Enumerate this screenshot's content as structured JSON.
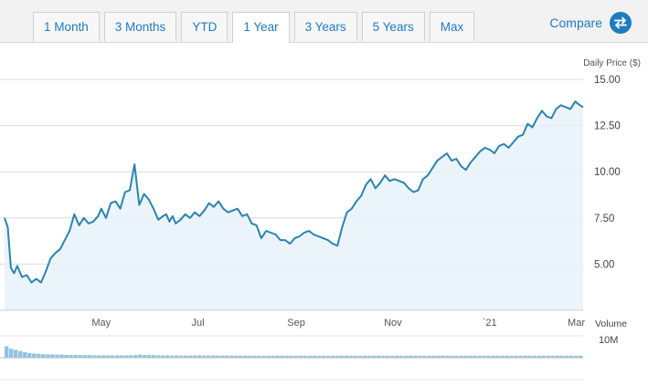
{
  "tabs": [
    {
      "label": "1 Month",
      "active": false
    },
    {
      "label": "3 Months",
      "active": false
    },
    {
      "label": "YTD",
      "active": false
    },
    {
      "label": "1 Year",
      "active": true
    },
    {
      "label": "3 Years",
      "active": false
    },
    {
      "label": "5 Years",
      "active": false
    },
    {
      "label": "Max",
      "active": false
    }
  ],
  "compare_label": "Compare",
  "compare_icon": "swap-arrows-icon",
  "colors": {
    "accent": "#1f7bbf",
    "line": "#2b84ad",
    "area": "#e6f1fa",
    "volume": "#8fc3e4"
  },
  "chart_data": {
    "type": "line",
    "ylabel": "Daily Price ($)",
    "ylim": [
      2.5,
      15.0
    ],
    "yticks": [
      "15.00",
      "12.50",
      "10.00",
      "7.50",
      "5.00"
    ],
    "grid": true,
    "x_range": [
      "2020-03-01",
      "2021-03-01"
    ],
    "xticks": [
      "May",
      "Jul",
      "Sep",
      "Nov",
      "`21",
      "Mar"
    ],
    "series": [
      {
        "x": [
          "2020-03-01",
          "2020-03-03",
          "2020-03-05",
          "2020-03-07",
          "2020-03-09",
          "2020-03-12",
          "2020-03-15",
          "2020-03-18",
          "2020-03-21",
          "2020-03-24",
          "2020-03-27",
          "2020-03-30",
          "2020-04-02",
          "2020-04-05",
          "2020-04-08",
          "2020-04-11",
          "2020-04-14",
          "2020-04-17",
          "2020-04-20",
          "2020-04-23",
          "2020-04-26",
          "2020-04-29",
          "2020-05-01",
          "2020-05-04",
          "2020-05-07",
          "2020-05-10",
          "2020-05-13",
          "2020-05-16",
          "2020-05-19",
          "2020-05-22",
          "2020-05-25",
          "2020-05-28",
          "2020-05-31",
          "2020-06-03",
          "2020-06-06",
          "2020-06-09",
          "2020-06-11",
          "2020-06-13",
          "2020-06-15",
          "2020-06-17",
          "2020-06-20",
          "2020-06-23",
          "2020-06-26",
          "2020-06-29",
          "2020-07-02",
          "2020-07-05",
          "2020-07-08",
          "2020-07-11",
          "2020-07-14",
          "2020-07-17",
          "2020-07-20",
          "2020-07-23",
          "2020-07-26",
          "2020-07-29",
          "2020-08-01",
          "2020-08-04",
          "2020-08-07",
          "2020-08-10",
          "2020-08-13",
          "2020-08-16",
          "2020-08-19",
          "2020-08-22",
          "2020-08-25",
          "2020-08-28",
          "2020-08-31",
          "2020-09-03",
          "2020-09-06",
          "2020-09-09",
          "2020-09-12",
          "2020-09-15",
          "2020-09-18",
          "2020-09-21",
          "2020-09-24",
          "2020-09-27",
          "2020-09-30",
          "2020-10-03",
          "2020-10-06",
          "2020-10-09",
          "2020-10-12",
          "2020-10-15",
          "2020-10-18",
          "2020-10-21",
          "2020-10-24",
          "2020-10-27",
          "2020-10-30",
          "2020-11-02",
          "2020-11-05",
          "2020-11-08",
          "2020-11-11",
          "2020-11-14",
          "2020-11-17",
          "2020-11-20",
          "2020-11-23",
          "2020-11-26",
          "2020-11-29",
          "2020-12-02",
          "2020-12-05",
          "2020-12-08",
          "2020-12-11",
          "2020-12-14",
          "2020-12-17",
          "2020-12-20",
          "2020-12-23",
          "2020-12-26",
          "2020-12-29",
          "2021-01-01",
          "2021-01-04",
          "2021-01-07",
          "2021-01-10",
          "2021-01-13",
          "2021-01-16",
          "2021-01-19",
          "2021-01-22",
          "2021-01-25",
          "2021-01-28",
          "2021-01-31",
          "2021-02-03",
          "2021-02-06",
          "2021-02-09",
          "2021-02-12",
          "2021-02-15",
          "2021-02-18",
          "2021-02-21",
          "2021-02-24",
          "2021-02-27",
          "2021-03-01"
        ],
        "values": [
          7.5,
          7.0,
          4.8,
          4.5,
          4.9,
          4.3,
          4.4,
          4.0,
          4.2,
          4.0,
          4.6,
          5.3,
          5.6,
          5.8,
          6.3,
          6.8,
          7.7,
          7.1,
          7.5,
          7.2,
          7.3,
          7.6,
          8.0,
          7.5,
          8.3,
          8.4,
          8.0,
          8.9,
          9.0,
          10.4,
          8.2,
          8.8,
          8.5,
          8.0,
          7.4,
          7.6,
          7.7,
          7.3,
          7.6,
          7.2,
          7.4,
          7.7,
          7.5,
          7.8,
          7.6,
          7.9,
          8.3,
          8.1,
          8.4,
          8.0,
          7.8,
          7.9,
          8.0,
          7.6,
          7.7,
          7.2,
          7.1,
          6.4,
          6.8,
          6.7,
          6.6,
          6.3,
          6.3,
          6.1,
          6.4,
          6.5,
          6.7,
          6.8,
          6.6,
          6.5,
          6.4,
          6.3,
          6.1,
          6.0,
          7.0,
          7.8,
          8.0,
          8.4,
          8.7,
          9.3,
          9.6,
          9.1,
          9.4,
          9.8,
          9.5,
          9.6,
          9.5,
          9.4,
          9.1,
          8.9,
          9.0,
          9.6,
          9.8,
          10.2,
          10.6,
          10.8,
          11.0,
          10.6,
          10.7,
          10.3,
          10.1,
          10.5,
          10.8,
          11.1,
          11.3,
          11.2,
          11.0,
          11.4,
          11.5,
          11.3,
          11.6,
          11.9,
          12.0,
          12.6,
          12.4,
          12.9,
          13.3,
          13.0,
          12.9,
          13.4,
          13.6,
          13.5,
          13.4,
          13.8,
          13.6,
          13.5
        ]
      }
    ],
    "volume_label": "Volume",
    "volume_max_label": "10M",
    "volume_ylim": [
      0,
      10000000
    ],
    "volume": [
      5200000,
      4100000,
      3600000,
      3000000,
      2500000,
      2100000,
      1900000,
      1800000,
      1600000,
      1500000,
      1500000,
      1400000,
      1400000,
      1300000,
      1300000,
      1300000,
      1200000,
      1200000,
      1200000,
      1100000,
      1100000,
      1100000,
      1100000,
      1100000,
      1100000,
      1100000,
      1100000,
      1100000,
      1200000,
      1400000,
      1300000,
      1200000,
      1200000,
      1100000,
      1100000,
      1100000,
      1000000,
      1000000,
      1000000,
      1000000,
      1000000,
      1000000,
      1000000,
      1000000,
      1000000,
      1000000,
      1000000,
      1000000,
      1000000,
      1000000,
      900000,
      900000,
      900000,
      900000,
      900000,
      900000,
      900000,
      900000,
      900000,
      900000,
      900000,
      900000,
      900000,
      900000,
      900000,
      900000,
      900000,
      900000,
      900000,
      900000,
      900000,
      900000,
      900000,
      900000,
      900000,
      900000,
      900000,
      900000,
      900000,
      900000,
      900000,
      900000,
      900000,
      900000,
      900000,
      900000,
      900000,
      900000,
      900000,
      900000,
      900000,
      900000,
      900000,
      900000,
      900000,
      900000,
      900000,
      900000,
      900000,
      900000,
      900000,
      900000,
      900000,
      900000,
      900000,
      900000,
      900000,
      900000,
      900000,
      900000,
      900000,
      900000,
      900000,
      900000,
      900000,
      900000,
      900000,
      900000,
      900000,
      900000,
      900000,
      900000,
      900000,
      900000,
      900000,
      900000
    ]
  }
}
